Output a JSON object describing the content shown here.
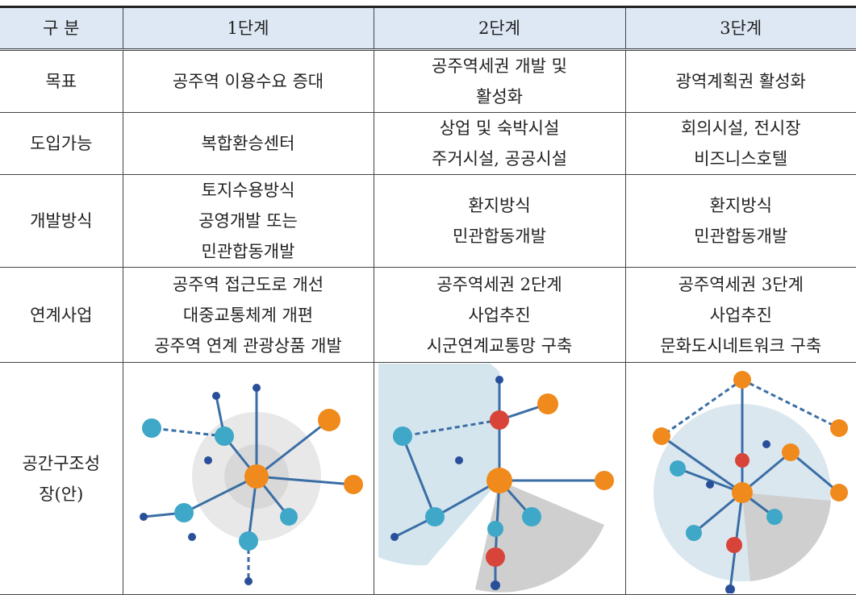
{
  "table": {
    "header": [
      "구  분",
      "1단계",
      "2단계",
      "3단계"
    ],
    "rows": [
      {
        "label": [
          "목표"
        ],
        "cells": [
          [
            "공주역 이용수요 증대"
          ],
          [
            "공주역세권 개발 및",
            "활성화"
          ],
          [
            "광역계획권 활성화"
          ]
        ]
      },
      {
        "label": [
          "도입가능"
        ],
        "cells": [
          [
            "복합환승센터"
          ],
          [
            "상업 및 숙박시설",
            "주거시설, 공공시설"
          ],
          [
            "회의시설, 전시장",
            "비즈니스호텔"
          ]
        ]
      },
      {
        "label": [
          "개발방식"
        ],
        "cells": [
          [
            "토지수용방식",
            "공영개발 또는",
            "민관합동개발"
          ],
          [
            "환지방식",
            "민관합동개발"
          ],
          [
            "환지방식",
            "민관합동개발"
          ]
        ]
      },
      {
        "label": [
          "연계사업"
        ],
        "cells": [
          [
            "공주역 접근도로 개선",
            "대중교통체계 개편",
            "공주역 연계 관광상품 개발"
          ],
          [
            "공주역세권 2단계",
            "사업추진",
            "시군연계교통망 구축"
          ],
          [
            "공주역세권 3단계",
            "사업추진",
            "문화도시네트워크 구축"
          ]
        ]
      },
      {
        "label": [
          "공간구조성",
          "장(안)"
        ],
        "cells": []
      }
    ]
  }
}
